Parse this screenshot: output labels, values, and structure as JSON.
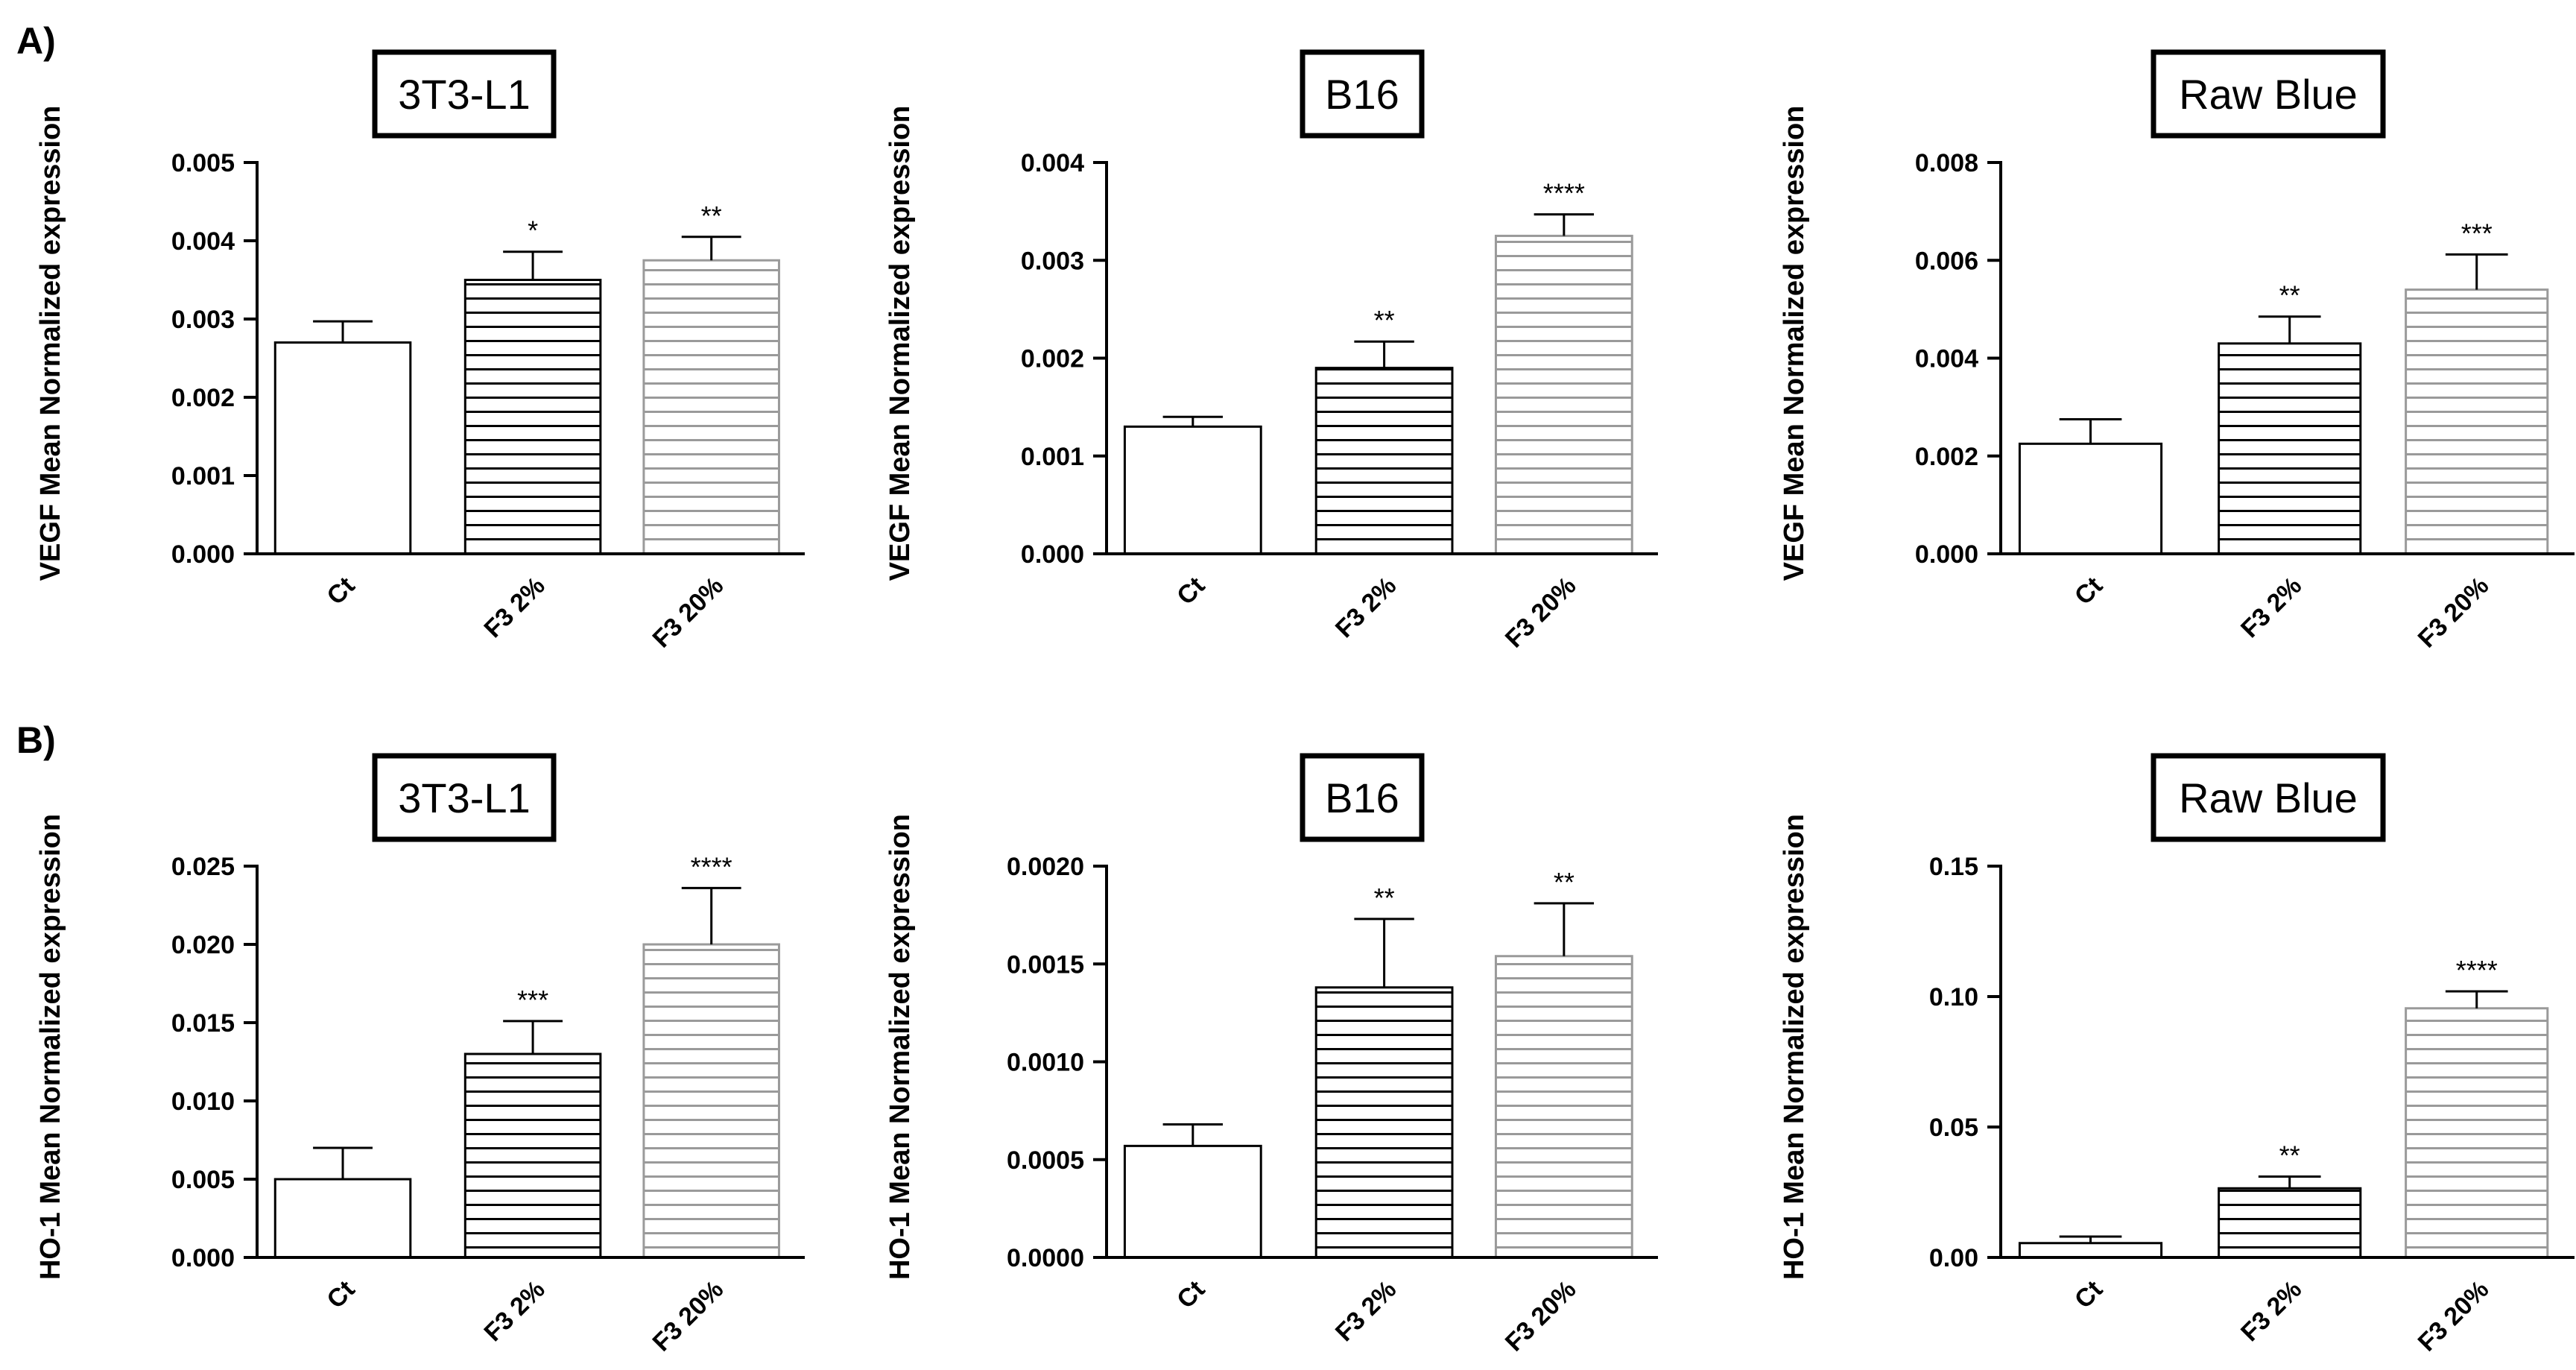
{
  "panels": [
    {
      "label": "A)",
      "gene": "VEGF"
    },
    {
      "label": "B)",
      "gene": "HO-1"
    }
  ],
  "colors": {
    "axis": "#000000",
    "bar_fill": "#ffffff",
    "f3_2_hatch": "#000000",
    "f3_20_hatch": "#9a9a9a"
  },
  "chart_data": [
    {
      "type": "bar",
      "panel": "A)",
      "title": "3T3-L1",
      "ylabel": "VEGF Mean Normalized expression",
      "categories": [
        "Ct",
        "F3 2%",
        "F3 20%"
      ],
      "values": [
        0.0027,
        0.0035,
        0.00375
      ],
      "errors": [
        0.00027,
        0.00036,
        0.0003
      ],
      "significance": [
        "",
        "*",
        "**"
      ],
      "ylim": [
        0,
        0.005
      ],
      "yticks": [
        0,
        0.001,
        0.002,
        0.003,
        0.004,
        0.005
      ],
      "yticklabels": [
        "0.000",
        "0.001",
        "0.002",
        "0.003",
        "0.004",
        "0.005"
      ]
    },
    {
      "type": "bar",
      "panel": "A)",
      "title": "B16",
      "ylabel": "VEGF Mean Normalized expression",
      "categories": [
        "Ct",
        "F3 2%",
        "F3 20%"
      ],
      "values": [
        0.0013,
        0.0019,
        0.00325
      ],
      "errors": [
        0.0001,
        0.00027,
        0.00022
      ],
      "significance": [
        "",
        "**",
        "****"
      ],
      "ylim": [
        0,
        0.004
      ],
      "yticks": [
        0,
        0.001,
        0.002,
        0.003,
        0.004
      ],
      "yticklabels": [
        "0.000",
        "0.001",
        "0.002",
        "0.003",
        "0.004"
      ]
    },
    {
      "type": "bar",
      "panel": "A)",
      "title": "Raw Blue",
      "ylabel": "VEGF Mean Normalized expression",
      "categories": [
        "Ct",
        "F3 2%",
        "F3 20%"
      ],
      "values": [
        0.00225,
        0.0043,
        0.0054
      ],
      "errors": [
        0.0005,
        0.00055,
        0.00072
      ],
      "significance": [
        "",
        "**",
        "***"
      ],
      "ylim": [
        0,
        0.008
      ],
      "yticks": [
        0,
        0.002,
        0.004,
        0.006,
        0.008
      ],
      "yticklabels": [
        "0.000",
        "0.002",
        "0.004",
        "0.006",
        "0.008"
      ]
    },
    {
      "type": "bar",
      "panel": "B)",
      "title": "3T3-L1",
      "ylabel": "HO-1 Mean Normalized expression",
      "categories": [
        "Ct",
        "F3 2%",
        "F3 20%"
      ],
      "values": [
        0.005,
        0.013,
        0.02
      ],
      "errors": [
        0.002,
        0.0021,
        0.0036
      ],
      "significance": [
        "",
        "***",
        "****"
      ],
      "ylim": [
        0,
        0.025
      ],
      "yticks": [
        0,
        0.005,
        0.01,
        0.015,
        0.02,
        0.025
      ],
      "yticklabels": [
        "0.000",
        "0.005",
        "0.010",
        "0.015",
        "0.020",
        "0.025"
      ]
    },
    {
      "type": "bar",
      "panel": "B)",
      "title": "B16",
      "ylabel": "HO-1 Mean Normalized expression",
      "categories": [
        "Ct",
        "F3 2%",
        "F3 20%"
      ],
      "values": [
        0.00057,
        0.00138,
        0.00154
      ],
      "errors": [
        0.00011,
        0.00035,
        0.00027
      ],
      "significance": [
        "",
        "**",
        "**"
      ],
      "ylim": [
        0,
        0.002
      ],
      "yticks": [
        0,
        0.0005,
        0.001,
        0.0015,
        0.002
      ],
      "yticklabels": [
        "0.0000",
        "0.0005",
        "0.0010",
        "0.0015",
        "0.0020"
      ]
    },
    {
      "type": "bar",
      "panel": "B)",
      "title": "Raw Blue",
      "ylabel": "HO-1 Mean Normalized expression",
      "categories": [
        "Ct",
        "F3 2%",
        "F3 20%"
      ],
      "values": [
        0.0055,
        0.0265,
        0.0955
      ],
      "errors": [
        0.0025,
        0.0045,
        0.0065
      ],
      "significance": [
        "",
        "**",
        "****"
      ],
      "ylim": [
        0,
        0.15
      ],
      "yticks": [
        0,
        0.05,
        0.1,
        0.15
      ],
      "yticklabels": [
        "0.00",
        "0.05",
        "0.10",
        "0.15"
      ]
    }
  ]
}
